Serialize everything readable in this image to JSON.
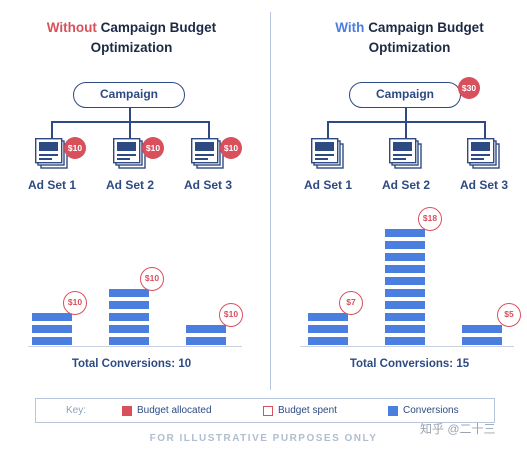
{
  "left": {
    "title_highlight": "Without",
    "title_rest": "Campaign Budget",
    "title_line2": "Optimization",
    "campaign_label": "Campaign",
    "adsets": [
      {
        "label": "Ad Set 1",
        "budget": "$10"
      },
      {
        "label": "Ad Set 2",
        "budget": "$10"
      },
      {
        "label": "Ad Set 3",
        "budget": "$10"
      }
    ],
    "bars": [
      {
        "segments": 3,
        "spent": "$10"
      },
      {
        "segments": 5,
        "spent": "$10"
      },
      {
        "segments": 2,
        "spent": "$10"
      }
    ],
    "total": "Total Conversions: 10"
  },
  "right": {
    "title_highlight": "With",
    "title_rest": "Campaign Budget",
    "title_line2": "Optimization",
    "campaign_label": "Campaign",
    "campaign_budget": "$30",
    "adsets": [
      {
        "label": "Ad Set 1"
      },
      {
        "label": "Ad Set 2"
      },
      {
        "label": "Ad Set 3"
      }
    ],
    "bars": [
      {
        "segments": 3,
        "spent": "$7"
      },
      {
        "segments": 10,
        "spent": "$18"
      },
      {
        "segments": 2,
        "spent": "$5"
      }
    ],
    "total": "Total Conversions: 15"
  },
  "legend": {
    "key_label": "Key:",
    "allocated": "Budget allocated",
    "spent": "Budget spent",
    "conversions": "Conversions"
  },
  "footer": "FOR ILLUSTRATIVE PURPOSES ONLY",
  "watermark": "知乎 @二十三",
  "colors": {
    "red": "#d9505d",
    "blue": "#4a7fe0",
    "navy": "#2e4a82"
  }
}
